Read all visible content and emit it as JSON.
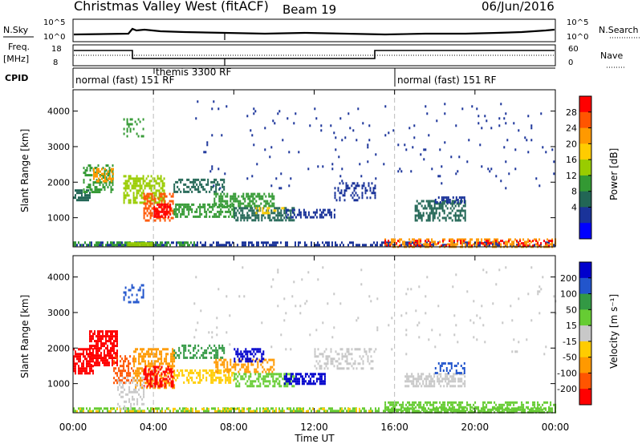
{
  "header": {
    "title": "Christmas Valley West (fitACF)",
    "beam": "Beam 19",
    "date": "06/Jun/2016"
  },
  "sky_panel": {
    "left_label": "N.Sky",
    "left_ticks": [
      "10^5",
      "10^0"
    ],
    "right_label": "N.Search",
    "right_ticks": [
      "10^5",
      "10^0"
    ]
  },
  "freq_panel": {
    "left_label_1": "Freq.",
    "left_label_2": "[MHz]",
    "left_ticks": [
      "18",
      "8"
    ],
    "right_label": "Nave",
    "right_ticks": [
      "60",
      "0"
    ]
  },
  "cpid_panel": {
    "label": "CPID",
    "segments": [
      {
        "text": "normal (fast) 151 RF",
        "start_hour": 0.0
      },
      {
        "text": "themis 3300 RF",
        "start_hour": 4.0
      },
      {
        "text": "normal (fast) 151 RF",
        "start_hour": 16.0
      }
    ]
  },
  "chart_data": [
    {
      "type": "heatmap",
      "name": "Power",
      "ylabel": "Slant Range [km]",
      "yticks": [
        "4000",
        "3000",
        "2000",
        "1000"
      ],
      "ylim": [
        180,
        4600
      ],
      "xlim": [
        0,
        24
      ],
      "colorbar": {
        "label": "Power [dB]",
        "ticks": [
          "28",
          "24",
          "20",
          "16",
          "12",
          "8",
          "4"
        ],
        "colors": [
          "#ff0000",
          "#ff5500",
          "#ff9900",
          "#ffcc00",
          "#99cc00",
          "#339933",
          "#226655",
          "#1a3399",
          "#0000ff"
        ]
      },
      "blobs": [
        {
          "t0": 0.0,
          "t1": 24.0,
          "r0": 200,
          "r1": 330,
          "color": "#1a3399",
          "density": 0.55
        },
        {
          "t0": 15.5,
          "t1": 24.0,
          "r0": 200,
          "r1": 420,
          "color": "#ff9900",
          "density": 0.45
        },
        {
          "t0": 15.5,
          "t1": 24.0,
          "r0": 200,
          "r1": 380,
          "color": "#ff0000",
          "density": 0.25
        },
        {
          "t0": 0.0,
          "t1": 6.0,
          "r0": 220,
          "r1": 330,
          "color": "#339933",
          "density": 0.5
        },
        {
          "t0": 2.7,
          "t1": 3.9,
          "r0": 230,
          "r1": 310,
          "color": "#99cc00",
          "density": 0.9
        },
        {
          "t0": 0.0,
          "t1": 0.8,
          "r0": 1500,
          "r1": 1800,
          "color": "#226655",
          "density": 0.7
        },
        {
          "t0": 0.5,
          "t1": 2.0,
          "r0": 1700,
          "r1": 2500,
          "color": "#339933",
          "density": 0.55
        },
        {
          "t0": 1.0,
          "t1": 2.0,
          "r0": 2000,
          "r1": 2400,
          "color": "#ff9900",
          "density": 0.6
        },
        {
          "t0": 2.5,
          "t1": 4.5,
          "r0": 1400,
          "r1": 2200,
          "color": "#99cc00",
          "density": 0.55
        },
        {
          "t0": 3.5,
          "t1": 5.0,
          "r0": 900,
          "r1": 1700,
          "color": "#ff5500",
          "density": 0.6
        },
        {
          "t0": 4.0,
          "t1": 4.8,
          "r0": 1000,
          "r1": 1400,
          "color": "#ff0000",
          "density": 0.6
        },
        {
          "t0": 5.0,
          "t1": 8.0,
          "r0": 1000,
          "r1": 1400,
          "color": "#339933",
          "density": 0.55
        },
        {
          "t0": 5.0,
          "t1": 7.5,
          "r0": 1700,
          "r1": 2100,
          "color": "#226655",
          "density": 0.45
        },
        {
          "t0": 7.0,
          "t1": 10.0,
          "r0": 1300,
          "r1": 1700,
          "color": "#339933",
          "density": 0.55
        },
        {
          "t0": 8.0,
          "t1": 11.0,
          "r0": 950,
          "r1": 1300,
          "color": "#226655",
          "density": 0.6
        },
        {
          "t0": 9.0,
          "t1": 10.5,
          "r0": 1100,
          "r1": 1300,
          "color": "#ffcc00",
          "density": 0.35
        },
        {
          "t0": 10.5,
          "t1": 13.0,
          "r0": 1000,
          "r1": 1250,
          "color": "#1a3399",
          "density": 0.5
        },
        {
          "t0": 13.0,
          "t1": 15.0,
          "r0": 1500,
          "r1": 2000,
          "color": "#1a3399",
          "density": 0.35
        },
        {
          "t0": 17.0,
          "t1": 19.5,
          "r0": 900,
          "r1": 1500,
          "color": "#226655",
          "density": 0.55
        },
        {
          "t0": 18.0,
          "t1": 19.5,
          "r0": 1400,
          "r1": 1600,
          "color": "#1a3399",
          "density": 0.45
        },
        {
          "t0": 2.5,
          "t1": 3.5,
          "r0": 3300,
          "r1": 3800,
          "color": "#339933",
          "density": 0.3
        },
        {
          "t0": 6.0,
          "t1": 24.0,
          "r0": 1800,
          "r1": 4300,
          "color": "#1a3399",
          "density": 0.02
        }
      ]
    },
    {
      "type": "heatmap",
      "name": "Velocity",
      "ylabel": "Slant Range [km]",
      "yticks": [
        "4000",
        "3000",
        "2000",
        "1000"
      ],
      "ylim": [
        180,
        4600
      ],
      "xlim": [
        0,
        24
      ],
      "xlabel": "Time UT",
      "xticks": [
        "00:00",
        "04:00",
        "08:00",
        "12:00",
        "16:00",
        "20:00",
        "00:00"
      ],
      "colorbar": {
        "label": "Velocity [m s⁻¹]",
        "ticks": [
          "200",
          "100",
          "50",
          "15",
          "-15",
          "-50",
          "-100",
          "-200"
        ],
        "colors": [
          "#0000cc",
          "#2255cc",
          "#339944",
          "#66cc33",
          "#c8c8c8",
          "#ffcc00",
          "#ff9900",
          "#ff5500",
          "#ff0000"
        ]
      },
      "blobs": [
        {
          "t0": 0.0,
          "t1": 24.0,
          "r0": 200,
          "r1": 330,
          "color": "#66cc33",
          "density": 0.55
        },
        {
          "t0": 0.0,
          "t1": 15.0,
          "r0": 200,
          "r1": 320,
          "color": "#ffcc00",
          "density": 0.25
        },
        {
          "t0": 15.5,
          "t1": 24.0,
          "r0": 200,
          "r1": 500,
          "color": "#66cc33",
          "density": 0.55
        },
        {
          "t0": 0.0,
          "t1": 1.0,
          "r0": 1300,
          "r1": 2000,
          "color": "#ff0000",
          "density": 0.7
        },
        {
          "t0": 0.8,
          "t1": 2.2,
          "r0": 1500,
          "r1": 2500,
          "color": "#ff0000",
          "density": 0.7
        },
        {
          "t0": 2.0,
          "t1": 3.0,
          "r0": 1000,
          "r1": 1800,
          "color": "#ff5500",
          "density": 0.5
        },
        {
          "t0": 3.0,
          "t1": 5.0,
          "r0": 900,
          "r1": 2000,
          "color": "#ff9900",
          "density": 0.55
        },
        {
          "t0": 3.5,
          "t1": 5.0,
          "r0": 900,
          "r1": 1500,
          "color": "#ff0000",
          "density": 0.55
        },
        {
          "t0": 2.2,
          "t1": 3.5,
          "r0": 300,
          "r1": 1200,
          "color": "#c8c8c8",
          "density": 0.35
        },
        {
          "t0": 5.0,
          "t1": 8.0,
          "r0": 1000,
          "r1": 1400,
          "color": "#ffcc00",
          "density": 0.5
        },
        {
          "t0": 5.0,
          "t1": 7.5,
          "r0": 1700,
          "r1": 2100,
          "color": "#339944",
          "density": 0.45
        },
        {
          "t0": 7.0,
          "t1": 10.0,
          "r0": 1300,
          "r1": 1700,
          "color": "#ff9900",
          "density": 0.45
        },
        {
          "t0": 8.0,
          "t1": 9.5,
          "r0": 1600,
          "r1": 2000,
          "color": "#0000cc",
          "density": 0.55
        },
        {
          "t0": 8.0,
          "t1": 11.0,
          "r0": 950,
          "r1": 1300,
          "color": "#66cc33",
          "density": 0.55
        },
        {
          "t0": 10.5,
          "t1": 12.5,
          "r0": 1000,
          "r1": 1300,
          "color": "#0000cc",
          "density": 0.55
        },
        {
          "t0": 12.0,
          "t1": 15.0,
          "r0": 1400,
          "r1": 2000,
          "color": "#c8c8c8",
          "density": 0.35
        },
        {
          "t0": 16.5,
          "t1": 19.5,
          "r0": 900,
          "r1": 1300,
          "color": "#c8c8c8",
          "density": 0.6
        },
        {
          "t0": 18.0,
          "t1": 19.5,
          "r0": 1300,
          "r1": 1600,
          "color": "#2255cc",
          "density": 0.35
        },
        {
          "t0": 2.5,
          "t1": 3.5,
          "r0": 3300,
          "r1": 3800,
          "color": "#2255cc",
          "density": 0.3
        },
        {
          "t0": 6.0,
          "t1": 24.0,
          "r0": 1800,
          "r1": 4300,
          "color": "#c8c8c8",
          "density": 0.02
        }
      ]
    }
  ]
}
